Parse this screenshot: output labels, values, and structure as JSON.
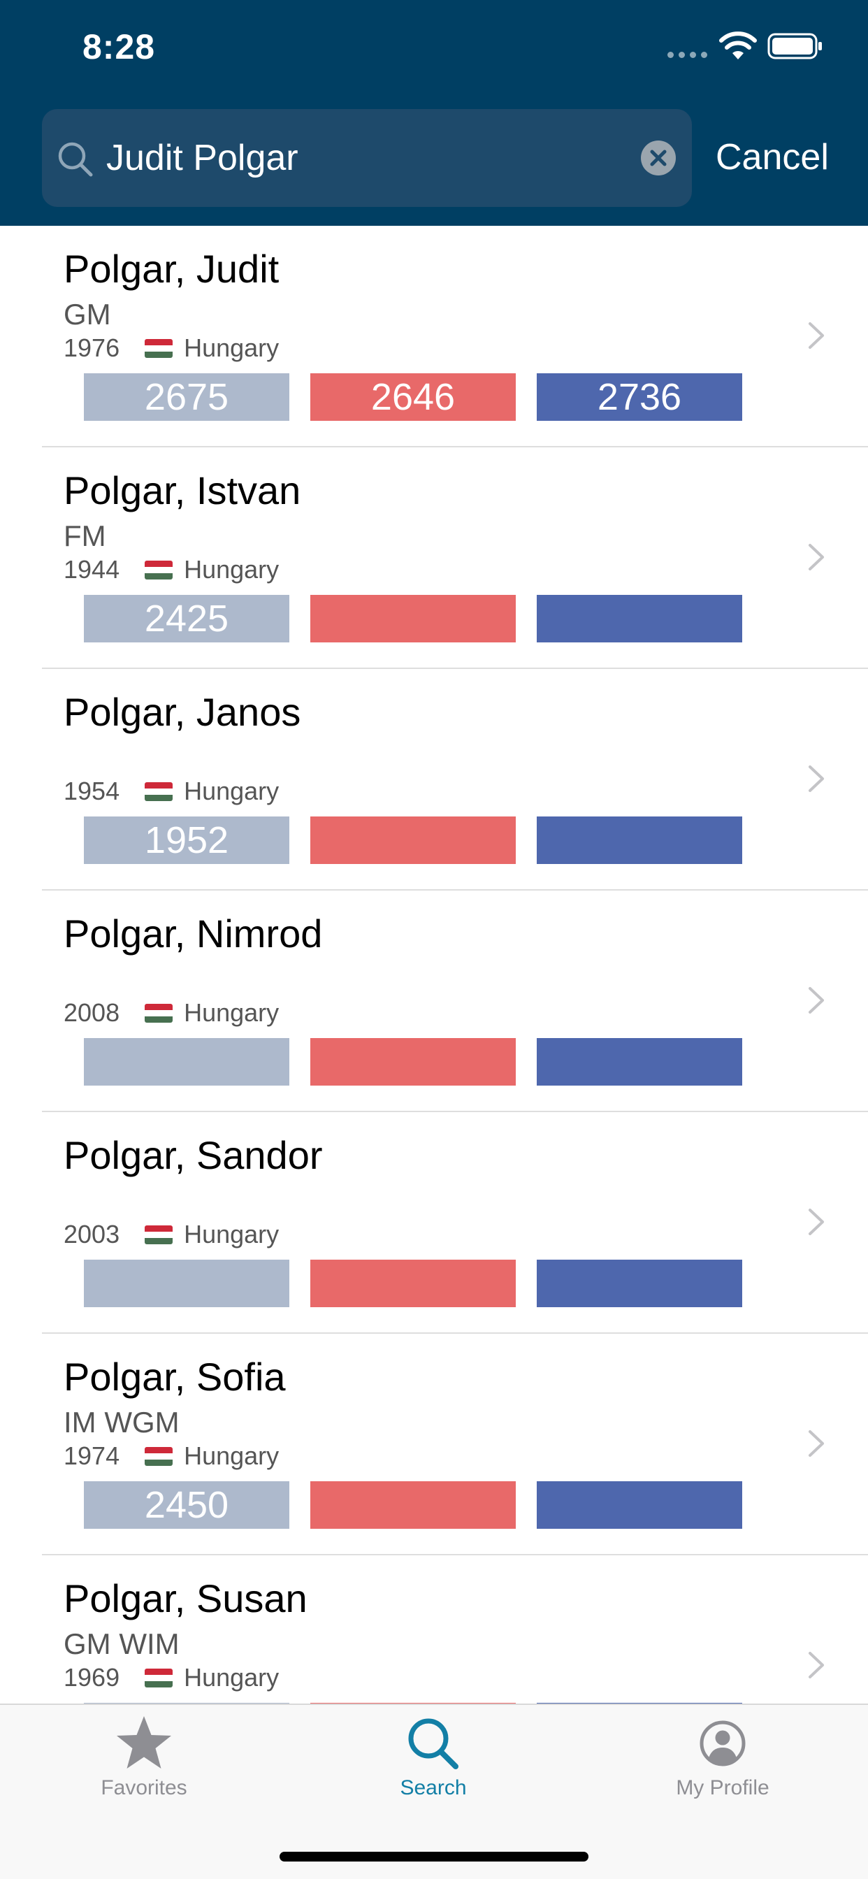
{
  "status_bar": {
    "time": "8:28"
  },
  "search": {
    "query": "Judit Polgar",
    "cancel_label": "Cancel"
  },
  "colors": {
    "header_bg": "#003f63",
    "standard_bar": "#adb9cc",
    "rapid_bar": "#e86969",
    "blitz_bar": "#4e67ad",
    "active_tab": "#137fa6"
  },
  "players": [
    {
      "name": "Polgar, Judit",
      "title": "GM",
      "year": "1976",
      "country": "Hungary",
      "standard": "2675",
      "rapid": "2646",
      "blitz": "2736"
    },
    {
      "name": "Polgar, Istvan",
      "title": "FM",
      "year": "1944",
      "country": "Hungary",
      "standard": "2425",
      "rapid": "",
      "blitz": ""
    },
    {
      "name": "Polgar, Janos",
      "title": "",
      "year": "1954",
      "country": "Hungary",
      "standard": "1952",
      "rapid": "",
      "blitz": ""
    },
    {
      "name": "Polgar, Nimrod",
      "title": "",
      "year": "2008",
      "country": "Hungary",
      "standard": "",
      "rapid": "",
      "blitz": ""
    },
    {
      "name": "Polgar, Sandor",
      "title": "",
      "year": "2003",
      "country": "Hungary",
      "standard": "",
      "rapid": "",
      "blitz": ""
    },
    {
      "name": "Polgar, Sofia",
      "title": "IM WGM",
      "year": "1974",
      "country": "Hungary",
      "standard": "2450",
      "rapid": "",
      "blitz": ""
    },
    {
      "name": "Polgar, Susan",
      "title": "GM WIM",
      "year": "1969",
      "country": "Hungary",
      "standard": "",
      "rapid": "",
      "blitz": ""
    }
  ],
  "tabs": [
    {
      "label": "Favorites",
      "icon": "star-icon",
      "active": false
    },
    {
      "label": "Search",
      "icon": "search-icon",
      "active": true
    },
    {
      "label": "My Profile",
      "icon": "profile-icon",
      "active": false
    }
  ]
}
